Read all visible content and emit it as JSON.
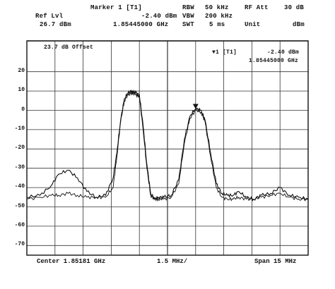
{
  "header": {
    "marker_label": "Marker 1 [T1]",
    "marker_level": "-2.40 dBm",
    "marker_freq": "1.85445000 GHz",
    "ref_lvl_label": "Ref Lvl",
    "ref_lvl_value": "26.7 dBm",
    "rbw_label": "RBW",
    "rbw_value": "50 kHz",
    "vbw_label": "VBW",
    "vbw_value": "200 kHz",
    "swt_label": "SWT",
    "swt_value": "5 ms",
    "rf_att_label": "RF Att",
    "rf_att_value": "30 dB",
    "unit_label": "Unit",
    "unit_value": "dBm"
  },
  "plot": {
    "offset_note": "23.7 dB Offset",
    "marker_box_label": "▼1 [T1]",
    "marker_box_level": "-2.40 dBm",
    "marker_box_freq": "1.85445000 GHz",
    "y_ticks": [
      "20",
      "10",
      "0",
      "-10",
      "-20",
      "-30",
      "-40",
      "-50",
      "-60",
      "-70"
    ]
  },
  "footer": {
    "center": "Center 1.85181 GHz",
    "per_div": "1.5 MHz/",
    "span": "Span 15 MHz"
  },
  "chart_data": {
    "type": "line",
    "x_unit": "MHz offset from center",
    "xlim": [
      -7.5,
      7.5
    ],
    "ylim": [
      -75,
      25
    ],
    "grid": true,
    "series": [
      {
        "x": [
          -7.5,
          -6.8,
          -6.2,
          -5.8,
          -5.3,
          -4.8,
          -4.3,
          -3.8,
          -3.3,
          -2.9,
          -2.7,
          -2.5,
          -2.3,
          -2.1,
          -1.9,
          -1.7,
          -1.5,
          -1.3,
          -1.1,
          -0.9,
          -0.7,
          -0.5,
          -0.2,
          0.2,
          0.6,
          0.9,
          1.2,
          1.5,
          1.8,
          2.0,
          2.3,
          2.6,
          2.9,
          3.2,
          3.5,
          3.8,
          4.2,
          4.6,
          5.0,
          5.5,
          6.0,
          6.5,
          7.0,
          7.5
        ],
        "values": [
          -45,
          -44,
          -39,
          -33,
          -31,
          -35,
          -42,
          -45,
          -44,
          -35,
          -22,
          -5,
          6,
          9,
          10,
          9,
          8,
          -8,
          -28,
          -43,
          -46,
          -45,
          -45,
          -44,
          -36,
          -15,
          -3,
          1,
          0,
          -5,
          -22,
          -38,
          -43,
          -44,
          -44,
          -42,
          -45,
          -46,
          -44,
          -43,
          -40,
          -44,
          -45,
          -46
        ]
      },
      {
        "x": [
          -7.5,
          -6.8,
          -6.2,
          -5.8,
          -5.3,
          -4.8,
          -4.3,
          -3.8,
          -3.3,
          -2.9,
          -2.7,
          -2.5,
          -2.3,
          -2.1,
          -1.9,
          -1.7,
          -1.5,
          -1.3,
          -1.1,
          -0.9,
          -0.7,
          -0.5,
          -0.2,
          0.2,
          0.6,
          0.9,
          1.2,
          1.5,
          1.8,
          2.0,
          2.3,
          2.6,
          2.9,
          3.2,
          3.5,
          3.8,
          4.2,
          4.6,
          5.0,
          5.5,
          6.0,
          6.5,
          7.0,
          7.5
        ],
        "values": [
          -46,
          -45,
          -44,
          -44,
          -43,
          -44,
          -45,
          -45,
          -45,
          -40,
          -24,
          -6,
          5,
          8,
          9,
          8,
          7,
          -10,
          -30,
          -44,
          -46,
          -46,
          -46,
          -45,
          -38,
          -17,
          -4,
          0,
          -1,
          -6,
          -24,
          -40,
          -45,
          -46,
          -46,
          -45,
          -46,
          -46,
          -45,
          -44,
          -43,
          -45,
          -46,
          -46
        ]
      }
    ]
  }
}
